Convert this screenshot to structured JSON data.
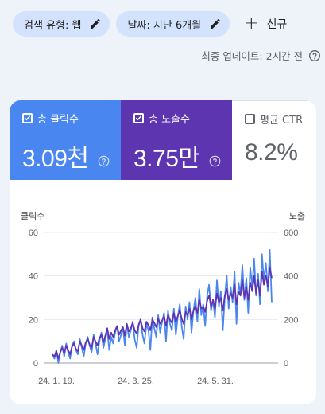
{
  "filters": {
    "search_type": "검색 유형: 웹",
    "date": "날짜: 지난 6개월",
    "new_label": "신규"
  },
  "last_update": "최종 업데이트: 2시간 전",
  "metrics": [
    {
      "label": "총 클릭수",
      "value": "3.09천",
      "checked": true,
      "color": "#4a86ef"
    },
    {
      "label": "총 노출수",
      "value": "3.75만",
      "checked": true,
      "color": "#5e35b1"
    },
    {
      "label": "평균 CTR",
      "value": "8.2%",
      "checked": false
    }
  ],
  "chart_data": {
    "type": "line",
    "left_axis_label": "클릭수",
    "right_axis_label": "노출",
    "left_ticks": [
      "0",
      "20",
      "40",
      "60"
    ],
    "right_ticks": [
      "0",
      "200",
      "400",
      "600"
    ],
    "ylim_left": [
      0,
      60
    ],
    "ylim_right": [
      0,
      600
    ],
    "x_ticks": [
      "24. 1. 19.",
      "24. 3. 25.",
      "24. 5. 31."
    ],
    "grid": true,
    "series": [
      {
        "name": "클릭수",
        "axis": "left",
        "color": "#4a86ef",
        "values": [
          4,
          2,
          6,
          0,
          5,
          8,
          3,
          9,
          5,
          2,
          8,
          10,
          6,
          4,
          11,
          7,
          3,
          9,
          12,
          8,
          5,
          13,
          9,
          4,
          10,
          14,
          7,
          11,
          15,
          6,
          12,
          9,
          14,
          17,
          10,
          13,
          16,
          8,
          18,
          12,
          15,
          19,
          11,
          7,
          17,
          20,
          13,
          9,
          18,
          15,
          6,
          21,
          16,
          12,
          22,
          14,
          19,
          23,
          10,
          24,
          18,
          15,
          25,
          13,
          21,
          27,
          17,
          11,
          26,
          20,
          28,
          14,
          24,
          30,
          19,
          34,
          22,
          27,
          17,
          31,
          36,
          24,
          29,
          21,
          38,
          26,
          33,
          15,
          30,
          40,
          25,
          35,
          28,
          42,
          18,
          37,
          32,
          45,
          29,
          39,
          23,
          44,
          35,
          48,
          31,
          41,
          27,
          50,
          38,
          46,
          33,
          52,
          28
        ]
      },
      {
        "name": "노출",
        "axis": "right",
        "color": "#5e35b1",
        "values": [
          40,
          30,
          55,
          20,
          50,
          70,
          45,
          80,
          60,
          40,
          75,
          90,
          65,
          55,
          100,
          80,
          60,
          95,
          110,
          85,
          70,
          120,
          100,
          80,
          115,
          130,
          95,
          125,
          160,
          110,
          140,
          120,
          150,
          170,
          130,
          150,
          165,
          125,
          180,
          145,
          160,
          185,
          150,
          135,
          175,
          200,
          160,
          145,
          190,
          175,
          150,
          200,
          185,
          165,
          205,
          180,
          195,
          215,
          170,
          220,
          200,
          185,
          230,
          190,
          215,
          240,
          205,
          180,
          235,
          220,
          250,
          200,
          240,
          260,
          230,
          290,
          250,
          260,
          235,
          285,
          310,
          260,
          290,
          250,
          320,
          280,
          300,
          240,
          310,
          340,
          290,
          320,
          300,
          360,
          270,
          330,
          310,
          380,
          300,
          350,
          290,
          370,
          330,
          400,
          320,
          380,
          310,
          420,
          360,
          400,
          350,
          440,
          390
        ]
      }
    ]
  }
}
